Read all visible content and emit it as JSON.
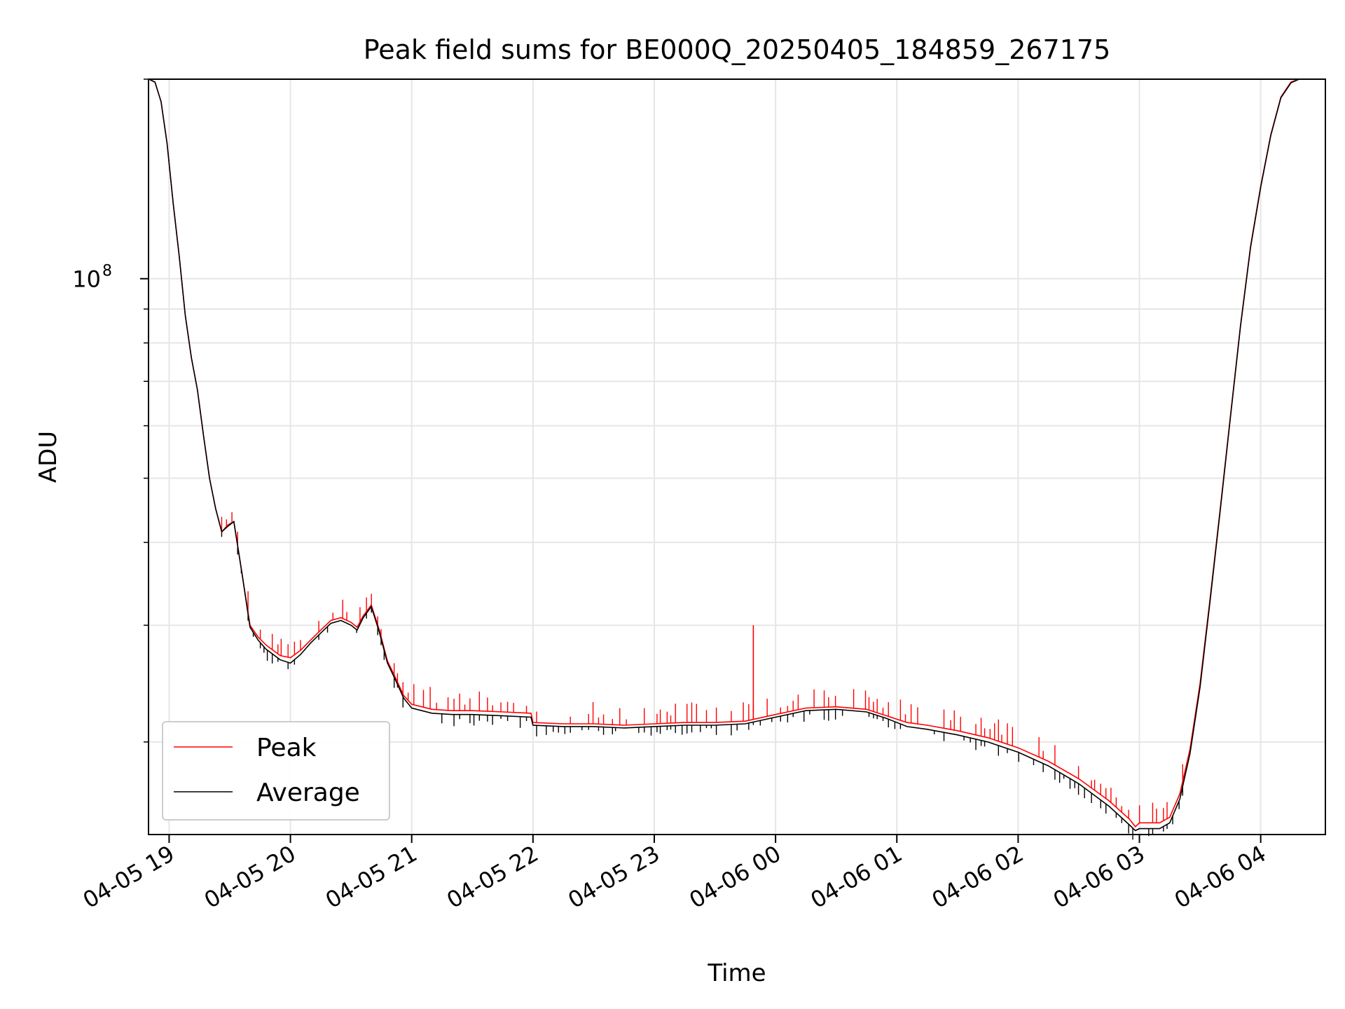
{
  "chart_data": {
    "type": "line",
    "title": "Peak field sums for BE000Q_20250405_184859_267175",
    "xlabel": "Time",
    "ylabel": "ADU",
    "y_scale": "log",
    "ylim": [
      14500000,
      200000000
    ],
    "xlim": [
      "2025-04-05T18:49:48",
      "2025-04-06T04:32:00"
    ],
    "grid": true,
    "legend_position": "lower-left",
    "x_ticks": [
      {
        "label": "04-05 19",
        "t": "2025-04-05T19:00"
      },
      {
        "label": "04-05 20",
        "t": "2025-04-05T20:00"
      },
      {
        "label": "04-05 21",
        "t": "2025-04-05T21:00"
      },
      {
        "label": "04-05 22",
        "t": "2025-04-05T22:00"
      },
      {
        "label": "04-05 23",
        "t": "2025-04-05T23:00"
      },
      {
        "label": "04-06 00",
        "t": "2025-04-06T00:00"
      },
      {
        "label": "04-06 01",
        "t": "2025-04-06T01:00"
      },
      {
        "label": "04-06 02",
        "t": "2025-04-06T02:00"
      },
      {
        "label": "04-06 03",
        "t": "2025-04-06T03:00"
      },
      {
        "label": "04-06 04",
        "t": "2025-04-06T04:00"
      }
    ],
    "y_ticks": [
      {
        "label_base": "10",
        "label_exp": "8",
        "value": 100000000
      }
    ],
    "series": [
      {
        "name": "Peak",
        "color": "#ff0000",
        "x": [
          "2025-04-05T18:50",
          "2025-04-05T18:53",
          "2025-04-05T18:56",
          "2025-04-05T18:59",
          "2025-04-05T19:02",
          "2025-04-05T19:05",
          "2025-04-05T19:08",
          "2025-04-05T19:11",
          "2025-04-05T19:14",
          "2025-04-05T19:17",
          "2025-04-05T19:20",
          "2025-04-05T19:23",
          "2025-04-05T19:26",
          "2025-04-05T19:29",
          "2025-04-05T19:32",
          "2025-04-05T19:36",
          "2025-04-05T19:40",
          "2025-04-05T19:44",
          "2025-04-05T19:48",
          "2025-04-05T19:55",
          "2025-04-05T20:00",
          "2025-04-05T20:05",
          "2025-04-05T20:10",
          "2025-04-05T20:15",
          "2025-04-05T20:20",
          "2025-04-05T20:25",
          "2025-04-05T20:30",
          "2025-04-05T20:33",
          "2025-04-05T20:36",
          "2025-04-05T20:40",
          "2025-04-05T20:44",
          "2025-04-05T20:48",
          "2025-04-05T20:52",
          "2025-04-05T20:56",
          "2025-04-05T21:00",
          "2025-04-05T21:05",
          "2025-04-05T21:10",
          "2025-04-05T21:20",
          "2025-04-05T21:30",
          "2025-04-05T21:45",
          "2025-04-05T21:59",
          "2025-04-05T22:00",
          "2025-04-05T22:15",
          "2025-04-05T22:30",
          "2025-04-05T22:45",
          "2025-04-05T23:00",
          "2025-04-05T23:15",
          "2025-04-05T23:30",
          "2025-04-05T23:45",
          "2025-04-06T00:00",
          "2025-04-06T00:15",
          "2025-04-06T00:30",
          "2025-04-06T00:45",
          "2025-04-06T00:55",
          "2025-04-06T01:05",
          "2025-04-06T01:15",
          "2025-04-06T01:30",
          "2025-04-06T01:45",
          "2025-04-06T02:00",
          "2025-04-06T02:15",
          "2025-04-06T02:30",
          "2025-04-06T02:45",
          "2025-04-06T02:55",
          "2025-04-06T02:58",
          "2025-04-06T03:00",
          "2025-04-06T03:05",
          "2025-04-06T03:10",
          "2025-04-06T03:15",
          "2025-04-06T03:20",
          "2025-04-06T03:25",
          "2025-04-06T03:30",
          "2025-04-06T03:35",
          "2025-04-06T03:40",
          "2025-04-06T03:45",
          "2025-04-06T03:50",
          "2025-04-06T03:55",
          "2025-04-06T04:00",
          "2025-04-06T04:05",
          "2025-04-06T04:10",
          "2025-04-06T04:15",
          "2025-04-06T04:19"
        ],
        "values": [
          200000000,
          198000000,
          185000000,
          160000000,
          130000000,
          108000000,
          88000000,
          76000000,
          68000000,
          58000000,
          50000000,
          45000000,
          41500000,
          42500000,
          43000000,
          36000000,
          30000000,
          28800000,
          28000000,
          27000000,
          26800000,
          27500000,
          28500000,
          29500000,
          30500000,
          30800000,
          30300000,
          29800000,
          31000000,
          32200000,
          29500000,
          26500000,
          25000000,
          23500000,
          22800000,
          22600000,
          22400000,
          22300000,
          22300000,
          22200000,
          22100000,
          21400000,
          21300000,
          21300000,
          21200000,
          21300000,
          21400000,
          21400000,
          21500000,
          22000000,
          22500000,
          22600000,
          22400000,
          21900000,
          21400000,
          21200000,
          20800000,
          20300000,
          19600000,
          18700000,
          17600000,
          16300000,
          15300000,
          14900000,
          15100000,
          15100000,
          15100000,
          15400000,
          16700000,
          19500000,
          24500000,
          33000000,
          45000000,
          62000000,
          85000000,
          112000000,
          138000000,
          165000000,
          188000000,
          198000000,
          200000000
        ]
      },
      {
        "name": "Average",
        "color": "#000000",
        "x": [
          "2025-04-05T18:50",
          "2025-04-05T18:53",
          "2025-04-05T18:56",
          "2025-04-05T18:59",
          "2025-04-05T19:02",
          "2025-04-05T19:05",
          "2025-04-05T19:08",
          "2025-04-05T19:11",
          "2025-04-05T19:14",
          "2025-04-05T19:17",
          "2025-04-05T19:20",
          "2025-04-05T19:23",
          "2025-04-05T19:26",
          "2025-04-05T19:29",
          "2025-04-05T19:32",
          "2025-04-05T19:36",
          "2025-04-05T19:40",
          "2025-04-05T19:44",
          "2025-04-05T19:48",
          "2025-04-05T19:55",
          "2025-04-05T20:00",
          "2025-04-05T20:05",
          "2025-04-05T20:10",
          "2025-04-05T20:15",
          "2025-04-05T20:20",
          "2025-04-05T20:25",
          "2025-04-05T20:30",
          "2025-04-05T20:33",
          "2025-04-05T20:36",
          "2025-04-05T20:40",
          "2025-04-05T20:44",
          "2025-04-05T20:48",
          "2025-04-05T20:52",
          "2025-04-05T20:56",
          "2025-04-05T21:00",
          "2025-04-05T21:05",
          "2025-04-05T21:10",
          "2025-04-05T21:20",
          "2025-04-05T21:30",
          "2025-04-05T21:45",
          "2025-04-05T21:59",
          "2025-04-05T22:00",
          "2025-04-05T22:15",
          "2025-04-05T22:30",
          "2025-04-05T22:45",
          "2025-04-05T23:00",
          "2025-04-05T23:15",
          "2025-04-05T23:30",
          "2025-04-05T23:45",
          "2025-04-06T00:00",
          "2025-04-06T00:15",
          "2025-04-06T00:30",
          "2025-04-06T00:45",
          "2025-04-06T00:55",
          "2025-04-06T01:05",
          "2025-04-06T01:15",
          "2025-04-06T01:30",
          "2025-04-06T01:45",
          "2025-04-06T02:00",
          "2025-04-06T02:15",
          "2025-04-06T02:30",
          "2025-04-06T02:45",
          "2025-04-06T02:55",
          "2025-04-06T02:58",
          "2025-04-06T03:00",
          "2025-04-06T03:05",
          "2025-04-06T03:10",
          "2025-04-06T03:15",
          "2025-04-06T03:20",
          "2025-04-06T03:25",
          "2025-04-06T03:30",
          "2025-04-06T03:35",
          "2025-04-06T03:40",
          "2025-04-06T03:45",
          "2025-04-06T03:50",
          "2025-04-06T03:55",
          "2025-04-06T04:00",
          "2025-04-06T04:05",
          "2025-04-06T04:10",
          "2025-04-06T04:15",
          "2025-04-06T04:19"
        ],
        "values": [
          200000000,
          198000000,
          185000000,
          160000000,
          130000000,
          108000000,
          88000000,
          76000000,
          68000000,
          58000000,
          50000000,
          45000000,
          41500000,
          42300000,
          43000000,
          36000000,
          29800000,
          28500000,
          27600000,
          26600000,
          26300000,
          27100000,
          28200000,
          29200000,
          30200000,
          30500000,
          30000000,
          29500000,
          30800000,
          32000000,
          29300000,
          26300000,
          24800000,
          23300000,
          22500000,
          22300000,
          22100000,
          22000000,
          22000000,
          21900000,
          21800000,
          21200000,
          21100000,
          21100000,
          21000000,
          21100000,
          21200000,
          21200000,
          21300000,
          21800000,
          22300000,
          22400000,
          22200000,
          21700000,
          21100000,
          20900000,
          20500000,
          20000000,
          19300000,
          18400000,
          17300000,
          16000000,
          15000000,
          14700000,
          14800000,
          14800000,
          14800000,
          15100000,
          16400000,
          19200000,
          24200000,
          32700000,
          44700000,
          61700000,
          84700000,
          111500000,
          137500000,
          164500000,
          187500000,
          197500000,
          200000000
        ]
      }
    ],
    "spikes": {
      "peak_single": {
        "t": "2025-04-05T23:49",
        "value": 30000000
      }
    }
  }
}
